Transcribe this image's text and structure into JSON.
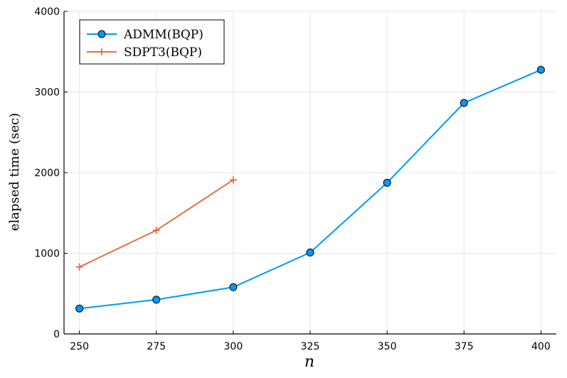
{
  "chart_data": {
    "type": "line",
    "xlabel": "n",
    "ylabel": "elapsed time (sec)",
    "xlim": [
      245,
      405
    ],
    "ylim": [
      0,
      4000
    ],
    "xticks": [
      250,
      275,
      300,
      325,
      350,
      375,
      400
    ],
    "yticks": [
      0,
      1000,
      2000,
      3000,
      4000
    ],
    "grid": true,
    "legend": "top-left",
    "series": [
      {
        "name": "ADMM(BQP)",
        "marker": "circle",
        "color": "#009AFA",
        "x": [
          250,
          275,
          300,
          325,
          350,
          375,
          400
        ],
        "y": [
          315,
          425,
          580,
          1010,
          1875,
          2865,
          3275
        ]
      },
      {
        "name": "SDPT3(BQP)",
        "marker": "cross",
        "color": "#E26F46",
        "x": [
          250,
          275,
          300
        ],
        "y": [
          830,
          1285,
          1910
        ]
      }
    ]
  }
}
